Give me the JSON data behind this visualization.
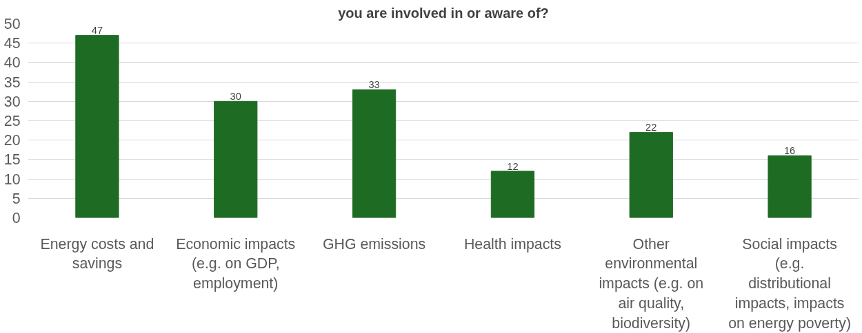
{
  "chart_data": {
    "type": "bar",
    "title": "you are involved in or aware of?",
    "categories": [
      "Energy costs and savings",
      "Economic impacts (e.g. on GDP, employment)",
      "GHG emissions",
      "Health impacts",
      "Other environmental impacts (e.g. on air quality, biodiversity)",
      "Social impacts (e.g. distributional impacts, impacts on energy poverty)"
    ],
    "values": [
      47,
      30,
      33,
      12,
      22,
      16
    ],
    "color": "#1e6b24",
    "ylim": [
      0,
      50
    ],
    "yticks": [
      0,
      5,
      10,
      15,
      20,
      25,
      30,
      35,
      40,
      45,
      50
    ],
    "grid": "y",
    "data_labels": true
  }
}
